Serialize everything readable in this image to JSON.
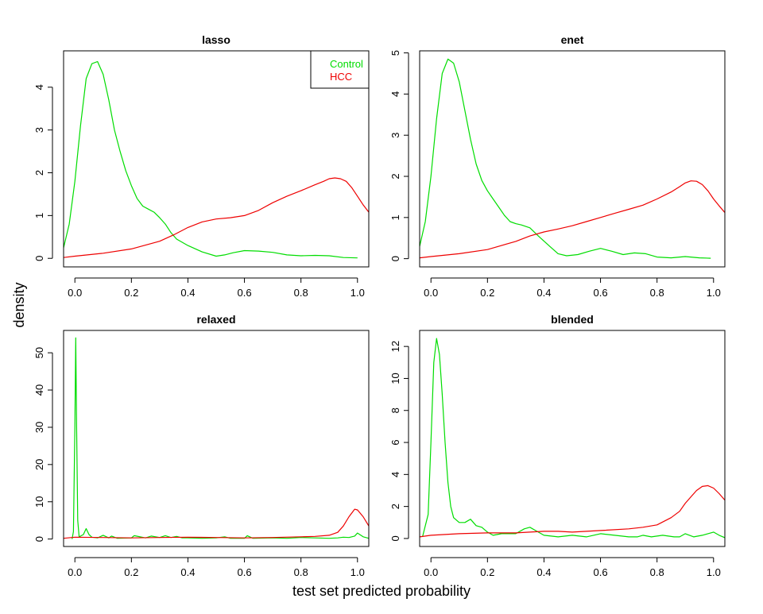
{
  "figure": {
    "ylabel": "density",
    "xlabel": "test set predicted probability"
  },
  "colors": {
    "control": "#00dd00",
    "hcc": "#ee0000",
    "axis": "#000000"
  },
  "legend": {
    "placement": "top-right of first panel",
    "entries": [
      "Control",
      "HCC"
    ]
  },
  "chart_data": [
    {
      "type": "line",
      "title": "lasso",
      "xlim": [
        -0.04,
        1.04
      ],
      "ylim": [
        -0.2,
        4.85
      ],
      "xticks": [
        0.0,
        0.2,
        0.4,
        0.6,
        0.8,
        1.0
      ],
      "xtick_labels": [
        "0.0",
        "0.2",
        "0.4",
        "0.6",
        "0.8",
        "1.0"
      ],
      "yticks": [
        0,
        1,
        2,
        3,
        4
      ],
      "ytick_labels": [
        "0",
        "1",
        "2",
        "3",
        "4"
      ],
      "series": [
        {
          "name": "Control",
          "x": [
            -0.04,
            -0.02,
            0.0,
            0.02,
            0.04,
            0.06,
            0.08,
            0.1,
            0.12,
            0.14,
            0.16,
            0.18,
            0.2,
            0.22,
            0.24,
            0.26,
            0.28,
            0.3,
            0.32,
            0.34,
            0.36,
            0.4,
            0.45,
            0.5,
            0.53,
            0.56,
            0.6,
            0.65,
            0.7,
            0.75,
            0.8,
            0.85,
            0.9,
            0.95,
            1.0
          ],
          "y": [
            0.25,
            0.8,
            1.8,
            3.1,
            4.2,
            4.55,
            4.6,
            4.3,
            3.7,
            3.0,
            2.5,
            2.05,
            1.7,
            1.4,
            1.22,
            1.15,
            1.08,
            0.95,
            0.8,
            0.6,
            0.45,
            0.3,
            0.15,
            0.05,
            0.08,
            0.13,
            0.18,
            0.17,
            0.14,
            0.08,
            0.06,
            0.07,
            0.06,
            0.02,
            0.01
          ]
        },
        {
          "name": "HCC",
          "x": [
            -0.04,
            0.0,
            0.1,
            0.2,
            0.3,
            0.35,
            0.4,
            0.45,
            0.5,
            0.55,
            0.6,
            0.65,
            0.7,
            0.75,
            0.8,
            0.85,
            0.88,
            0.9,
            0.92,
            0.94,
            0.96,
            0.98,
            1.0,
            1.02,
            1.04
          ],
          "y": [
            0.02,
            0.05,
            0.12,
            0.22,
            0.4,
            0.55,
            0.72,
            0.85,
            0.92,
            0.95,
            1.0,
            1.12,
            1.3,
            1.45,
            1.58,
            1.72,
            1.8,
            1.86,
            1.88,
            1.86,
            1.8,
            1.65,
            1.45,
            1.25,
            1.08
          ]
        }
      ]
    },
    {
      "type": "line",
      "title": "enet",
      "xlim": [
        -0.04,
        1.04
      ],
      "ylim": [
        -0.2,
        5.05
      ],
      "xticks": [
        0.0,
        0.2,
        0.4,
        0.6,
        0.8,
        1.0
      ],
      "xtick_labels": [
        "0.0",
        "0.2",
        "0.4",
        "0.6",
        "0.8",
        "1.0"
      ],
      "yticks": [
        0,
        1,
        2,
        3,
        4,
        5
      ],
      "ytick_labels": [
        "0",
        "1",
        "2",
        "3",
        "4",
        "5"
      ],
      "series": [
        {
          "name": "Control",
          "x": [
            -0.04,
            -0.02,
            0.0,
            0.02,
            0.04,
            0.06,
            0.08,
            0.1,
            0.12,
            0.14,
            0.16,
            0.18,
            0.2,
            0.22,
            0.24,
            0.26,
            0.28,
            0.3,
            0.32,
            0.35,
            0.38,
            0.42,
            0.45,
            0.48,
            0.52,
            0.56,
            0.6,
            0.64,
            0.68,
            0.72,
            0.76,
            0.8,
            0.85,
            0.9,
            0.95,
            0.99
          ],
          "y": [
            0.3,
            0.9,
            2.0,
            3.4,
            4.5,
            4.85,
            4.75,
            4.3,
            3.6,
            2.9,
            2.3,
            1.9,
            1.65,
            1.45,
            1.25,
            1.05,
            0.9,
            0.85,
            0.82,
            0.75,
            0.55,
            0.3,
            0.12,
            0.07,
            0.1,
            0.18,
            0.25,
            0.18,
            0.1,
            0.14,
            0.12,
            0.04,
            0.02,
            0.05,
            0.02,
            0.01
          ]
        },
        {
          "name": "HCC",
          "x": [
            -0.04,
            0.0,
            0.1,
            0.2,
            0.3,
            0.35,
            0.4,
            0.45,
            0.5,
            0.55,
            0.6,
            0.65,
            0.7,
            0.75,
            0.8,
            0.85,
            0.88,
            0.9,
            0.92,
            0.94,
            0.96,
            0.98,
            1.0,
            1.02,
            1.04
          ],
          "y": [
            0.02,
            0.05,
            0.12,
            0.22,
            0.42,
            0.55,
            0.65,
            0.72,
            0.8,
            0.9,
            1.0,
            1.1,
            1.2,
            1.3,
            1.45,
            1.62,
            1.75,
            1.84,
            1.89,
            1.88,
            1.8,
            1.65,
            1.45,
            1.28,
            1.12
          ]
        }
      ]
    },
    {
      "type": "line",
      "title": "relaxed",
      "xlim": [
        -0.04,
        1.04
      ],
      "ylim": [
        -2,
        56
      ],
      "xticks": [
        0.0,
        0.2,
        0.4,
        0.6,
        0.8,
        1.0
      ],
      "xtick_labels": [
        "0.0",
        "0.2",
        "0.4",
        "0.6",
        "0.8",
        "1.0"
      ],
      "yticks": [
        0,
        10,
        20,
        30,
        40,
        50
      ],
      "ytick_labels": [
        "0",
        "10",
        "20",
        "30",
        "40",
        "50"
      ],
      "series": [
        {
          "name": "Control",
          "x": [
            -0.01,
            -0.005,
            0.0,
            0.003,
            0.006,
            0.01,
            0.015,
            0.02,
            0.03,
            0.04,
            0.05,
            0.06,
            0.08,
            0.1,
            0.12,
            0.13,
            0.15,
            0.2,
            0.21,
            0.25,
            0.27,
            0.3,
            0.32,
            0.34,
            0.36,
            0.38,
            0.4,
            0.45,
            0.5,
            0.53,
            0.55,
            0.6,
            0.61,
            0.63,
            0.7,
            0.75,
            0.8,
            0.85,
            0.9,
            0.93,
            0.95,
            0.97,
            0.99,
            1.0,
            1.02,
            1.04
          ],
          "y": [
            0,
            2,
            30,
            54,
            30,
            5,
            0.5,
            0.8,
            1.2,
            2.8,
            1.2,
            0.5,
            0.3,
            1.0,
            0.3,
            0.8,
            0.2,
            0.3,
            0.9,
            0.3,
            0.8,
            0.4,
            0.9,
            0.4,
            0.7,
            0.3,
            0.3,
            0.2,
            0.3,
            0.6,
            0.2,
            0.2,
            0.9,
            0.2,
            0.3,
            0.2,
            0.4,
            0.3,
            0.2,
            0.3,
            0.5,
            0.4,
            0.8,
            1.6,
            0.6,
            0.2
          ]
        },
        {
          "name": "HCC",
          "x": [
            -0.04,
            0.0,
            0.1,
            0.2,
            0.3,
            0.4,
            0.5,
            0.6,
            0.7,
            0.8,
            0.85,
            0.9,
            0.93,
            0.95,
            0.97,
            0.99,
            1.0,
            1.02,
            1.04
          ],
          "y": [
            0.2,
            0.5,
            0.4,
            0.3,
            0.4,
            0.5,
            0.4,
            0.3,
            0.4,
            0.6,
            0.7,
            1.0,
            1.8,
            3.5,
            6.0,
            8.0,
            7.8,
            6.0,
            3.5
          ]
        }
      ]
    },
    {
      "type": "line",
      "title": "blended",
      "xlim": [
        -0.04,
        1.04
      ],
      "ylim": [
        -0.5,
        13.0
      ],
      "xticks": [
        0.0,
        0.2,
        0.4,
        0.6,
        0.8,
        1.0
      ],
      "xtick_labels": [
        "0.0",
        "0.2",
        "0.4",
        "0.6",
        "0.8",
        "1.0"
      ],
      "yticks": [
        0,
        2,
        4,
        6,
        8,
        10,
        12
      ],
      "ytick_labels": [
        "0",
        "2",
        "4",
        "6",
        "8",
        "10",
        "12"
      ],
      "series": [
        {
          "name": "Control",
          "x": [
            -0.03,
            -0.01,
            0.0,
            0.01,
            0.02,
            0.03,
            0.04,
            0.05,
            0.06,
            0.07,
            0.08,
            0.1,
            0.12,
            0.14,
            0.16,
            0.18,
            0.2,
            0.22,
            0.25,
            0.3,
            0.33,
            0.35,
            0.37,
            0.4,
            0.45,
            0.5,
            0.55,
            0.6,
            0.65,
            0.7,
            0.73,
            0.75,
            0.78,
            0.82,
            0.86,
            0.88,
            0.9,
            0.93,
            0.96,
            0.98,
            1.0,
            1.02,
            1.04
          ],
          "y": [
            0.1,
            1.5,
            6.0,
            11.0,
            12.5,
            11.5,
            9.0,
            6.0,
            3.5,
            2.0,
            1.3,
            1.0,
            1.0,
            1.2,
            0.8,
            0.7,
            0.4,
            0.2,
            0.3,
            0.3,
            0.6,
            0.7,
            0.5,
            0.2,
            0.1,
            0.2,
            0.1,
            0.3,
            0.2,
            0.1,
            0.1,
            0.2,
            0.1,
            0.2,
            0.1,
            0.1,
            0.3,
            0.1,
            0.2,
            0.3,
            0.4,
            0.2,
            0.05
          ]
        },
        {
          "name": "HCC",
          "x": [
            -0.04,
            0.0,
            0.1,
            0.2,
            0.3,
            0.4,
            0.45,
            0.5,
            0.6,
            0.7,
            0.75,
            0.8,
            0.85,
            0.88,
            0.9,
            0.92,
            0.94,
            0.96,
            0.98,
            1.0,
            1.02,
            1.04
          ],
          "y": [
            0.1,
            0.2,
            0.3,
            0.35,
            0.35,
            0.45,
            0.45,
            0.4,
            0.5,
            0.6,
            0.7,
            0.85,
            1.3,
            1.7,
            2.2,
            2.6,
            3.0,
            3.25,
            3.3,
            3.15,
            2.8,
            2.4
          ]
        }
      ]
    }
  ]
}
